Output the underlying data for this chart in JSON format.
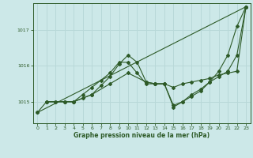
{
  "title": "Graphe pression niveau de la mer (hPa)",
  "bg_color": "#cce8e8",
  "grid_color": "#b8d8d8",
  "line_color": "#2d5a27",
  "x_min": -0.5,
  "x_max": 23.5,
  "y_min": 1014.4,
  "y_max": 1017.75,
  "yticks": [
    1015,
    1016,
    1017
  ],
  "xticks": [
    0,
    1,
    2,
    3,
    4,
    5,
    6,
    7,
    8,
    9,
    10,
    11,
    12,
    13,
    14,
    15,
    16,
    17,
    18,
    19,
    20,
    21,
    22,
    23
  ],
  "line1_x": [
    0,
    23
  ],
  "line1_y": [
    1014.7,
    1017.65
  ],
  "line2_x": [
    0,
    1,
    2,
    3,
    4,
    5,
    6,
    7,
    8,
    9,
    10,
    11,
    12,
    13,
    14,
    15,
    16,
    17,
    18,
    19,
    20,
    21,
    22,
    23
  ],
  "line2_y": [
    1014.7,
    1015.0,
    1015.0,
    1015.0,
    1015.0,
    1015.1,
    1015.2,
    1015.45,
    1015.7,
    1016.05,
    1016.3,
    1016.1,
    1015.55,
    1015.5,
    1015.5,
    1014.85,
    1015.0,
    1015.15,
    1015.3,
    1015.55,
    1015.85,
    1016.3,
    1017.1,
    1017.65
  ],
  "line3_x": [
    1,
    2,
    3,
    4,
    5,
    6,
    7,
    8,
    9,
    10,
    11,
    12,
    13,
    14,
    15,
    16,
    17,
    18,
    19,
    20,
    21,
    22,
    23
  ],
  "line3_y": [
    1015.0,
    1015.0,
    1015.0,
    1015.0,
    1015.2,
    1015.4,
    1015.6,
    1015.8,
    1016.1,
    1016.1,
    1015.8,
    1015.5,
    1015.5,
    1015.5,
    1014.9,
    1015.0,
    1015.2,
    1015.35,
    1015.55,
    1015.7,
    1015.85,
    1016.3,
    1017.65
  ],
  "line4_x": [
    1,
    3,
    4,
    6,
    8,
    10,
    12,
    13,
    14,
    15,
    16,
    17,
    18,
    19,
    20,
    21,
    22,
    23
  ],
  "line4_y": [
    1015.0,
    1015.0,
    1015.0,
    1015.2,
    1015.5,
    1015.8,
    1015.55,
    1015.5,
    1015.5,
    1015.4,
    1015.5,
    1015.55,
    1015.6,
    1015.65,
    1015.75,
    1015.8,
    1015.85,
    1017.65
  ]
}
